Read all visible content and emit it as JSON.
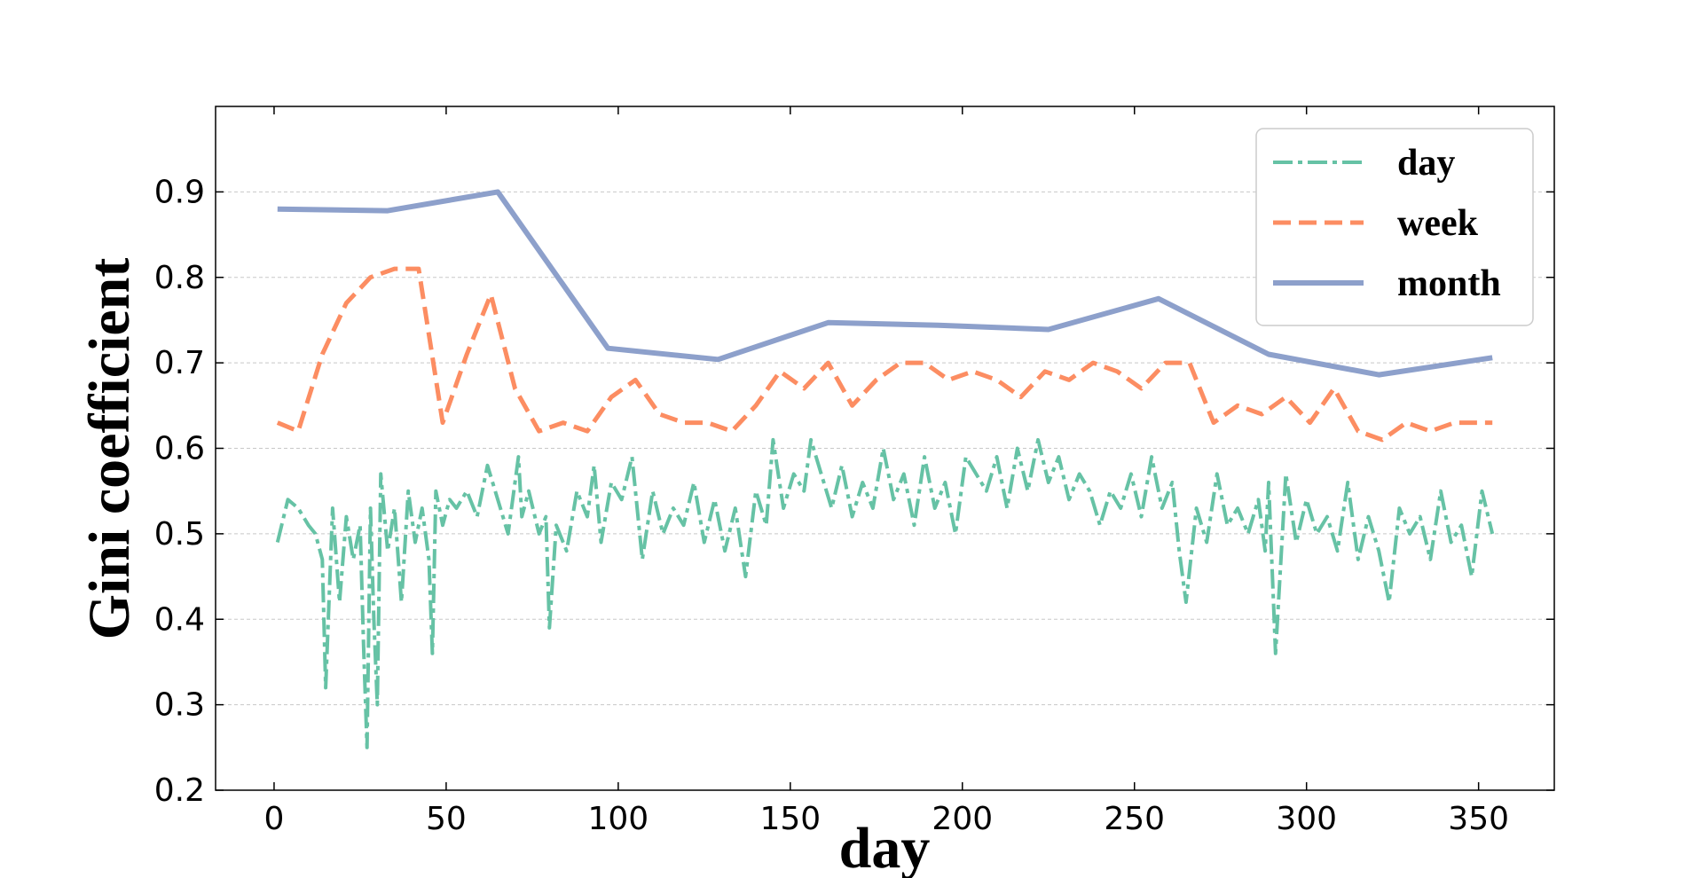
{
  "chart_data": {
    "type": "line",
    "xlabel": "day",
    "ylabel": "Gini coefficient",
    "xlim": [
      -17,
      372
    ],
    "ylim": [
      0.2,
      1.0
    ],
    "x_ticks": [
      0,
      50,
      100,
      150,
      200,
      250,
      300,
      350
    ],
    "y_ticks": [
      0.2,
      0.3,
      0.4,
      0.5,
      0.6,
      0.7,
      0.8,
      0.9
    ],
    "x_tick_labels": [
      "0",
      "50",
      "100",
      "150",
      "200",
      "250",
      "300",
      "350"
    ],
    "y_tick_labels": [
      "0.2",
      "0.3",
      "0.4",
      "0.5",
      "0.6",
      "0.7",
      "0.8",
      "0.9"
    ],
    "grid": "horizontal dashed",
    "legend_position": "top-right",
    "series": [
      {
        "name": "day",
        "color": "#66c2a5",
        "dash": "dash-dot",
        "x": [
          1,
          4,
          7,
          10,
          12,
          14,
          15,
          17,
          19,
          21,
          23,
          25,
          26,
          27,
          28,
          29,
          30,
          31,
          33,
          35,
          37,
          39,
          41,
          43,
          45,
          46,
          47,
          49,
          51,
          53,
          56,
          59,
          62,
          65,
          68,
          71,
          72,
          74,
          77,
          79,
          80,
          82,
          85,
          88,
          91,
          93,
          95,
          98,
          101,
          104,
          107,
          110,
          113,
          116,
          119,
          122,
          125,
          128,
          131,
          134,
          137,
          140,
          143,
          145,
          148,
          151,
          154,
          156,
          159,
          162,
          165,
          168,
          171,
          174,
          177,
          180,
          183,
          186,
          189,
          192,
          195,
          198,
          201,
          204,
          207,
          210,
          213,
          216,
          219,
          222,
          225,
          228,
          231,
          234,
          237,
          240,
          243,
          246,
          249,
          252,
          255,
          258,
          261,
          263,
          265,
          268,
          271,
          274,
          277,
          280,
          283,
          286,
          288,
          289,
          291,
          294,
          297,
          300,
          303,
          306,
          309,
          312,
          315,
          318,
          321,
          324,
          327,
          330,
          333,
          336,
          339,
          342,
          345,
          348,
          351,
          354
        ],
        "values": [
          0.49,
          0.54,
          0.53,
          0.51,
          0.5,
          0.47,
          0.32,
          0.53,
          0.42,
          0.52,
          0.47,
          0.51,
          0.37,
          0.25,
          0.53,
          0.4,
          0.3,
          0.57,
          0.48,
          0.53,
          0.42,
          0.55,
          0.49,
          0.53,
          0.47,
          0.36,
          0.55,
          0.51,
          0.54,
          0.53,
          0.55,
          0.52,
          0.58,
          0.54,
          0.5,
          0.59,
          0.52,
          0.55,
          0.5,
          0.52,
          0.39,
          0.51,
          0.48,
          0.55,
          0.52,
          0.58,
          0.49,
          0.56,
          0.54,
          0.59,
          0.47,
          0.55,
          0.5,
          0.53,
          0.51,
          0.56,
          0.49,
          0.54,
          0.48,
          0.53,
          0.45,
          0.55,
          0.51,
          0.61,
          0.53,
          0.57,
          0.55,
          0.61,
          0.57,
          0.53,
          0.58,
          0.52,
          0.56,
          0.53,
          0.6,
          0.54,
          0.57,
          0.51,
          0.59,
          0.53,
          0.56,
          0.5,
          0.59,
          0.57,
          0.55,
          0.59,
          0.53,
          0.6,
          0.55,
          0.61,
          0.56,
          0.59,
          0.54,
          0.57,
          0.55,
          0.51,
          0.55,
          0.53,
          0.57,
          0.52,
          0.59,
          0.53,
          0.56,
          0.48,
          0.42,
          0.53,
          0.49,
          0.57,
          0.51,
          0.53,
          0.5,
          0.54,
          0.48,
          0.56,
          0.36,
          0.57,
          0.49,
          0.54,
          0.5,
          0.52,
          0.48,
          0.56,
          0.47,
          0.52,
          0.48,
          0.42,
          0.53,
          0.5,
          0.52,
          0.47,
          0.55,
          0.49,
          0.51,
          0.45,
          0.55,
          0.5
        ]
      },
      {
        "name": "week",
        "color": "#fc8d62",
        "dash": "dashed",
        "x": [
          1,
          7,
          14,
          21,
          28,
          35,
          42,
          49,
          56,
          63,
          70,
          77,
          84,
          91,
          98,
          105,
          112,
          119,
          126,
          133,
          140,
          147,
          154,
          161,
          168,
          175,
          182,
          189,
          196,
          203,
          210,
          217,
          224,
          231,
          238,
          245,
          252,
          259,
          266,
          273,
          280,
          287,
          294,
          301,
          308,
          315,
          322,
          329,
          336,
          343,
          350,
          354
        ],
        "values": [
          0.63,
          0.62,
          0.71,
          0.77,
          0.8,
          0.81,
          0.81,
          0.63,
          0.71,
          0.78,
          0.67,
          0.62,
          0.63,
          0.62,
          0.66,
          0.68,
          0.64,
          0.63,
          0.63,
          0.62,
          0.65,
          0.69,
          0.67,
          0.7,
          0.65,
          0.68,
          0.7,
          0.7,
          0.68,
          0.69,
          0.68,
          0.66,
          0.69,
          0.68,
          0.7,
          0.69,
          0.67,
          0.7,
          0.7,
          0.63,
          0.65,
          0.64,
          0.66,
          0.63,
          0.67,
          0.62,
          0.61,
          0.63,
          0.62,
          0.63,
          0.63,
          0.63
        ]
      },
      {
        "name": "month",
        "color": "#8da0cb",
        "dash": "solid",
        "x": [
          1,
          33,
          65,
          97,
          129,
          161,
          193,
          225,
          257,
          289,
          321,
          354
        ],
        "values": [
          0.88,
          0.878,
          0.9,
          0.717,
          0.704,
          0.747,
          0.744,
          0.739,
          0.775,
          0.71,
          0.686,
          0.706
        ]
      }
    ]
  }
}
